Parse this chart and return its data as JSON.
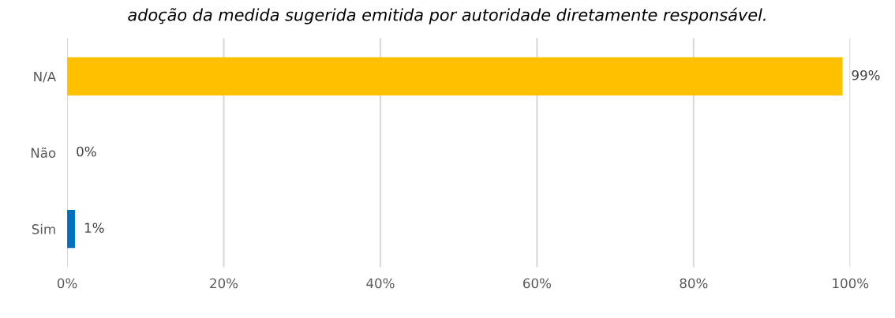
{
  "chart_data": {
    "type": "bar",
    "orientation": "horizontal",
    "title": "adoção da medida sugerida emitida por autoridade diretamente responsável.",
    "categories": [
      "N/A",
      "Não",
      "Sim"
    ],
    "values": [
      99,
      0,
      1
    ],
    "colors": [
      "#ffc000",
      "#ffc000",
      "#0070c0"
    ],
    "value_labels": [
      "99%",
      "0%",
      "1%"
    ],
    "xlim": [
      0,
      100
    ],
    "xticks": [
      {
        "value": 0,
        "label": "0%"
      },
      {
        "value": 20,
        "label": "20%"
      },
      {
        "value": 40,
        "label": "40%"
      },
      {
        "value": 60,
        "label": "60%"
      },
      {
        "value": 80,
        "label": "80%"
      },
      {
        "value": 100,
        "label": "100%"
      }
    ],
    "grid": "x",
    "legend": false
  }
}
